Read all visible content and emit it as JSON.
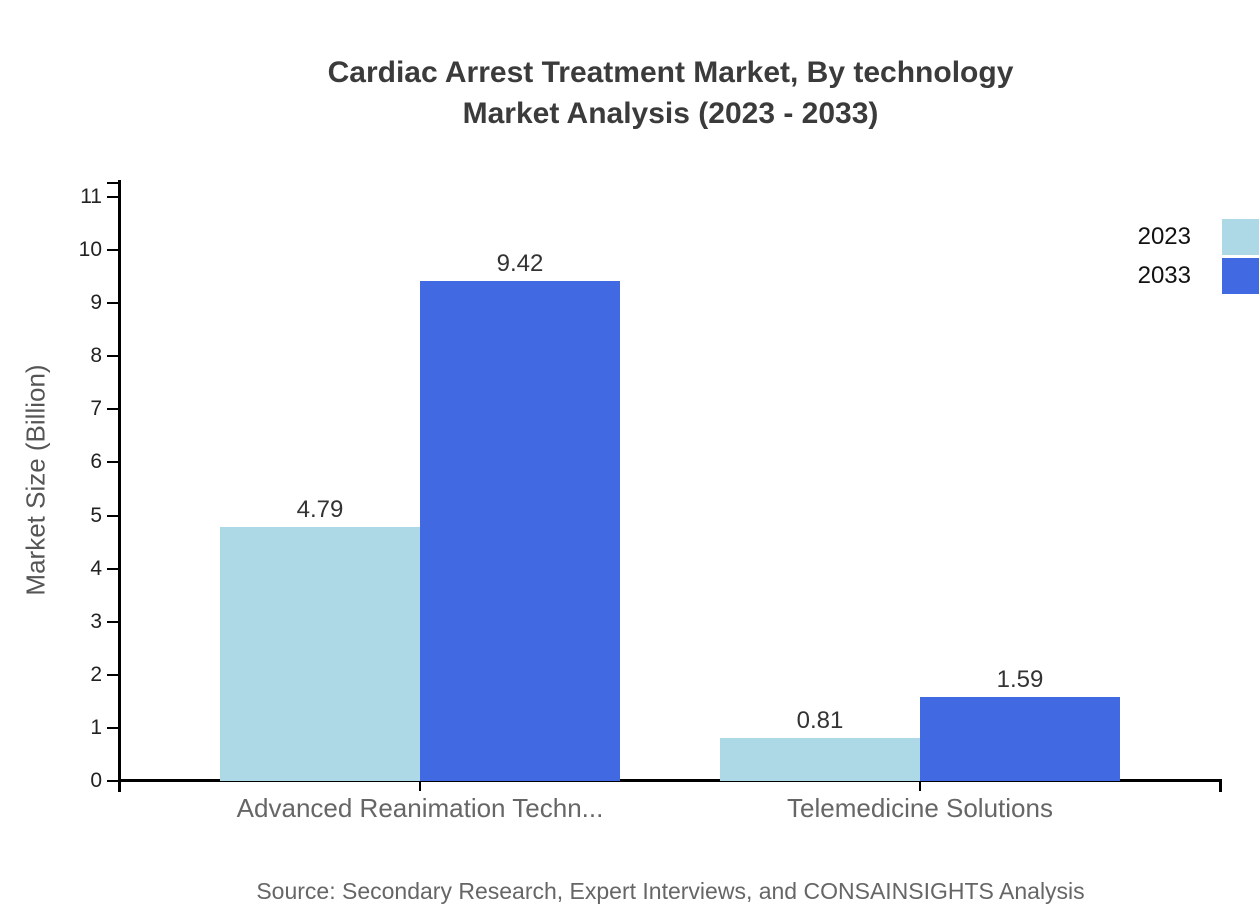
{
  "title": {
    "line1": "Cardiac Arrest Treatment Market, By technology",
    "line2": "Market Analysis (2023 - 2033)"
  },
  "source_note": "Source: Secondary Research, Expert Interviews, and CONSAINSIGHTS Analysis",
  "colors": {
    "series_2023": "#ADD8E6",
    "series_2033": "#4169E1",
    "axis": "#000000",
    "title_text": "#3b3b3b",
    "muted_text": "#666666"
  },
  "chart_data": {
    "type": "bar",
    "title": "Cardiac Arrest Treatment Market, By technology Market Analysis (2023 - 2033)",
    "categories": [
      "Advanced Reanimation Techn...",
      "Telemedicine Solutions"
    ],
    "series": [
      {
        "name": "2023",
        "color": "#ADD8E6",
        "values": [
          4.79,
          0.81
        ]
      },
      {
        "name": "2033",
        "color": "#4169E1",
        "values": [
          9.42,
          1.59
        ]
      }
    ],
    "value_labels": [
      [
        "4.79",
        "0.81"
      ],
      [
        "9.42",
        "1.59"
      ]
    ],
    "xlabel": "",
    "ylabel": "Market Size (Billion)",
    "ylim": [
      0,
      11
    ],
    "yticks": [
      0,
      1,
      2,
      3,
      4,
      5,
      6,
      7,
      8,
      9,
      10,
      11
    ],
    "grid": false,
    "legend_position": "top-right"
  }
}
